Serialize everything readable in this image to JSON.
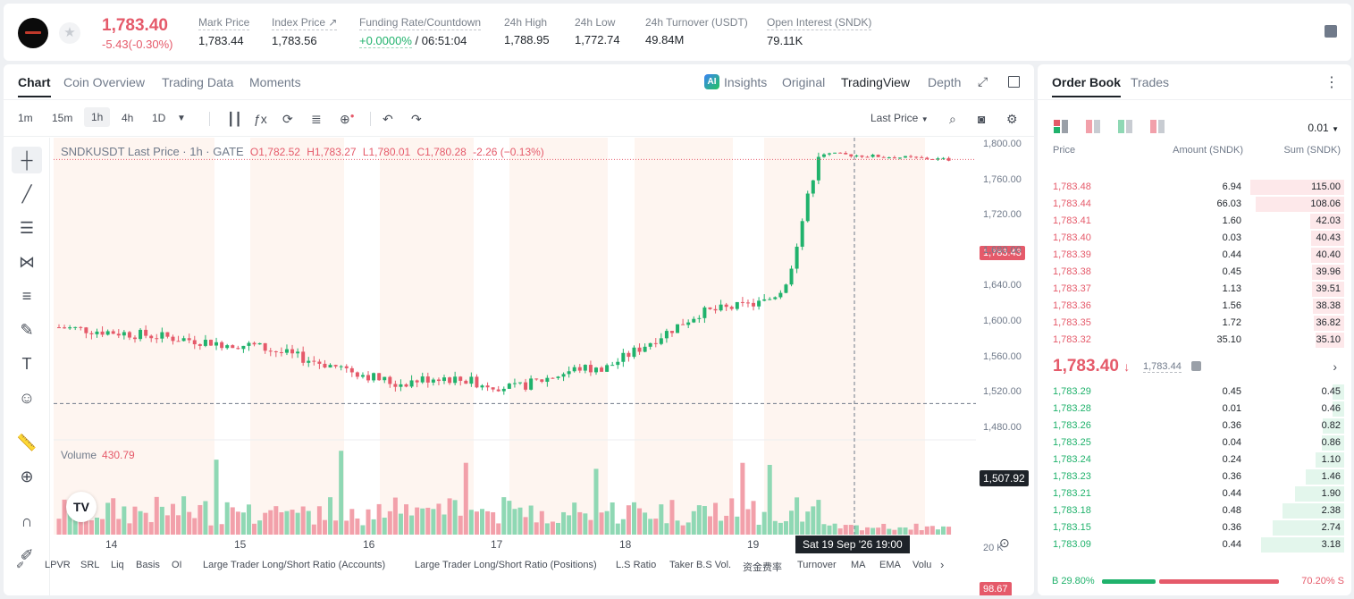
{
  "header": {
    "last_price": "1,783.40",
    "change": "-5.43(-0.30%)",
    "stats": [
      {
        "label": "Mark Price",
        "value": "1,783.44"
      },
      {
        "label": "Index Price ↗",
        "value": "1,783.56"
      },
      {
        "label": "Funding Rate/Countdown",
        "value_green": "+0.0000%",
        "value": " / 06:51:04"
      },
      {
        "label": "24h High",
        "value": "1,788.95"
      },
      {
        "label": "24h Low",
        "value": "1,772.74"
      },
      {
        "label": "24h Turnover (USDT)",
        "value": "49.84M"
      },
      {
        "label": "Open Interest (SNDK)",
        "value": "79.11K"
      }
    ]
  },
  "chart_tabs": [
    "Chart",
    "Coin Overview",
    "Trading Data",
    "Moments"
  ],
  "view_tabs": [
    "Insights",
    "Original",
    "TradingView",
    "Depth"
  ],
  "timeframes": [
    "1m",
    "15m",
    "1h",
    "4h",
    "1D"
  ],
  "price_type": "Last Price",
  "legend": {
    "symbol": "SNDKUSDT Last Price · 1h · GATE",
    "o": "O1,782.52",
    "h": "H1,783.27",
    "l": "L1,780.01",
    "c": "C1,780.28",
    "chg": "-2.26 (−0.13%)"
  },
  "volume_legend": {
    "label": "Volume",
    "value": "430.79"
  },
  "price_tags": {
    "last": "1,783.43",
    "cross": "1,507.92",
    "vol": "98.67",
    "vol_axis": "20 K"
  },
  "crosshair_date": "Sat 19 Sep '26   19:00",
  "indicators": [
    "LPVR",
    "SRL",
    "Liq",
    "Basis",
    "OI",
    "Large Trader Long/Short Ratio (Accounts)",
    "Large Trader Long/Short Ratio (Positions)",
    "L.S Ratio",
    "Taker B.S Vol.",
    "资金费率",
    "Turnover",
    "MA",
    "EMA",
    "Volu"
  ],
  "chart_data": {
    "type": "candlestick",
    "title": "SNDKUSDT Last Price · 1h · GATE",
    "y_ticks": [
      "1,800.00",
      "1,760.00",
      "1,720.00",
      "1,680.00",
      "1,640.00",
      "1,600.00",
      "1,560.00",
      "1,520.00",
      "1,480.00"
    ],
    "x_ticks": [
      "14",
      "15",
      "16",
      "17",
      "18",
      "19"
    ],
    "ylim": [
      1475,
      1808
    ],
    "x": [
      "14",
      "15",
      "16",
      "17",
      "18",
      "19"
    ],
    "close": [
      1584,
      1573,
      1538,
      1545,
      1622,
      1783
    ],
    "volume_axis": [
      "20 K"
    ]
  },
  "order_book": {
    "tabs": [
      "Order Book",
      "Trades"
    ],
    "precision": "0.01",
    "headers": [
      "Price",
      "Amount (SNDK)",
      "Sum (SNDK)"
    ],
    "asks": [
      {
        "price": "1,783.48",
        "amount": "6.94",
        "sum": "115.00"
      },
      {
        "price": "1,783.44",
        "amount": "66.03",
        "sum": "108.06"
      },
      {
        "price": "1,783.41",
        "amount": "1.60",
        "sum": "42.03"
      },
      {
        "price": "1,783.40",
        "amount": "0.03",
        "sum": "40.43"
      },
      {
        "price": "1,783.39",
        "amount": "0.44",
        "sum": "40.40"
      },
      {
        "price": "1,783.38",
        "amount": "0.45",
        "sum": "39.96"
      },
      {
        "price": "1,783.37",
        "amount": "1.13",
        "sum": "39.51"
      },
      {
        "price": "1,783.36",
        "amount": "1.56",
        "sum": "38.38"
      },
      {
        "price": "1,783.35",
        "amount": "1.72",
        "sum": "36.82"
      },
      {
        "price": "1,783.32",
        "amount": "35.10",
        "sum": "35.10"
      }
    ],
    "mid_price": "1,783.40",
    "mark_price": "1,783.44",
    "bids": [
      {
        "price": "1,783.29",
        "amount": "0.45",
        "sum": "0.45"
      },
      {
        "price": "1,783.28",
        "amount": "0.01",
        "sum": "0.46"
      },
      {
        "price": "1,783.26",
        "amount": "0.36",
        "sum": "0.82"
      },
      {
        "price": "1,783.25",
        "amount": "0.04",
        "sum": "0.86"
      },
      {
        "price": "1,783.24",
        "amount": "0.24",
        "sum": "1.10"
      },
      {
        "price": "1,783.23",
        "amount": "0.36",
        "sum": "1.46"
      },
      {
        "price": "1,783.21",
        "amount": "0.44",
        "sum": "1.90"
      },
      {
        "price": "1,783.18",
        "amount": "0.48",
        "sum": "2.38"
      },
      {
        "price": "1,783.15",
        "amount": "0.36",
        "sum": "2.74"
      },
      {
        "price": "1,783.09",
        "amount": "0.44",
        "sum": "3.18"
      }
    ],
    "buy_ratio": "B 29.80%",
    "sell_ratio": "70.20% S"
  },
  "colors": {
    "up": "#20b26c",
    "down": "#e55a6a",
    "up_light": "#8fd8b4",
    "down_light": "#f2a0aa"
  }
}
